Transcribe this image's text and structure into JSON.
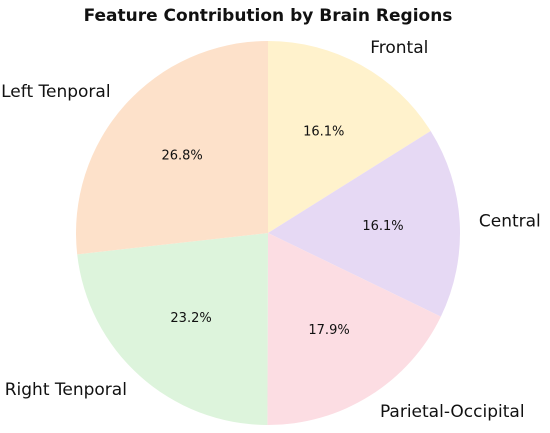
{
  "chart_data": {
    "type": "pie",
    "title": "Feature Contribution by Brain Regions",
    "categories": [
      "Frontal",
      "Central",
      "Parietal-Occipital",
      "Right Tenporal",
      "Left Tenporal"
    ],
    "values": [
      16.1,
      16.1,
      17.9,
      23.2,
      26.8
    ],
    "value_labels": [
      "16.1%",
      "16.1%",
      "17.9%",
      "23.2%",
      "26.8%"
    ],
    "colors": [
      "#fff2cc",
      "#e6d9f4",
      "#fcdde3",
      "#ddf4dc",
      "#fde1ca"
    ]
  }
}
